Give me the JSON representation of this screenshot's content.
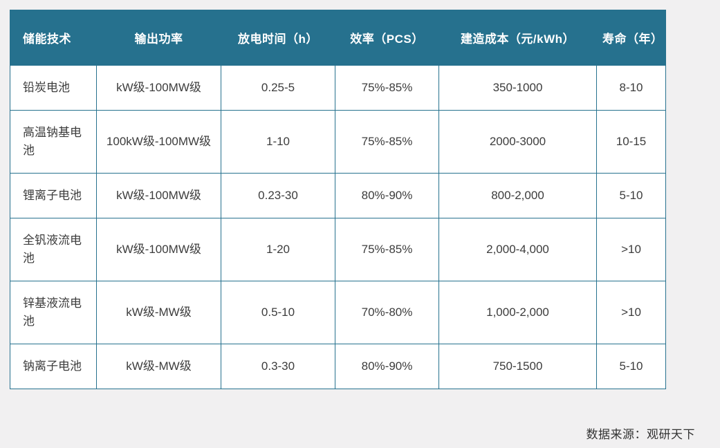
{
  "chart_data": {
    "type": "table",
    "title": "",
    "columns": [
      "储能技术",
      "输出功率",
      "放电时间（h）",
      "效率（PCS）",
      "建造成本（元/kWh）",
      "寿命（年）"
    ],
    "rows": [
      [
        "铅炭电池",
        "kW级-100MW级",
        "0.25-5",
        "75%-85%",
        "350-1000",
        "8-10"
      ],
      [
        "高温钠基电池",
        "100kW级-100MW级",
        "1-10",
        "75%-85%",
        "2000-3000",
        "10-15"
      ],
      [
        "锂离子电池",
        "kW级-100MW级",
        "0.23-30",
        "80%-90%",
        "800-2,000",
        "5-10"
      ],
      [
        "全钒液流电池",
        "kW级-100MW级",
        "1-20",
        "75%-85%",
        "2,000-4,000",
        ">10"
      ],
      [
        "锌基液流电池",
        "kW级-MW级",
        "0.5-10",
        "70%-80%",
        "1,000-2,000",
        ">10"
      ],
      [
        "钠离子电池",
        "kW级-MW级",
        "0.3-30",
        "80%-90%",
        "750-1500",
        "5-10"
      ]
    ]
  },
  "source": {
    "label": "数据来源：观研天下"
  },
  "colors": {
    "header_bg": "#26718e",
    "border": "#26718e",
    "body_text": "#3c3c3c",
    "page_bg": "#f1f0f1"
  }
}
